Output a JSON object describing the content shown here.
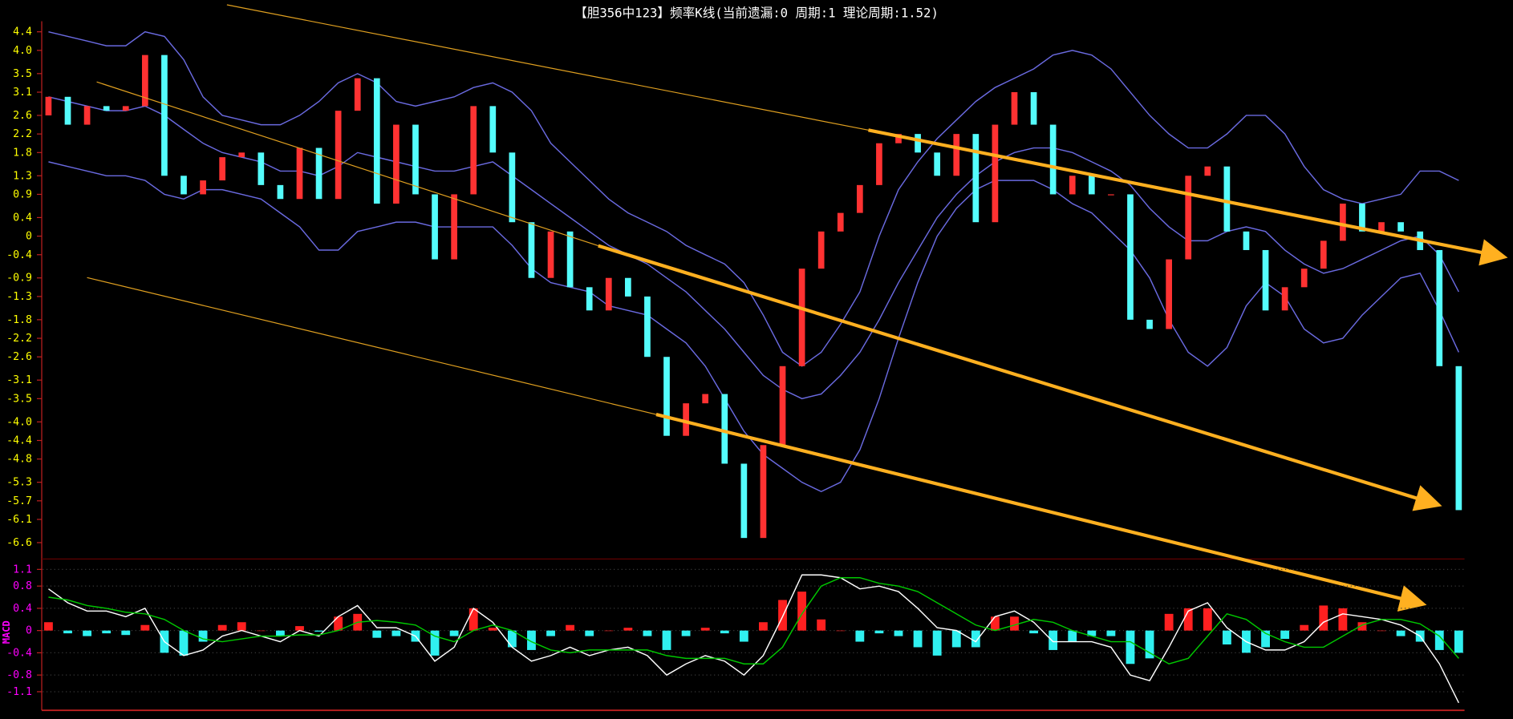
{
  "chart_data": [
    {
      "type": "candlestick",
      "title": "【胆356中123】频率K线(当前遗漏:0 周期:1 理论周期:1.52)",
      "up_color": "#ff3232",
      "down_color": "#54fcfc",
      "open": [
        2.6,
        3.0,
        2.4,
        2.8,
        2.7,
        2.8,
        3.9,
        1.3,
        0.9,
        1.2,
        1.7,
        1.8,
        1.1,
        0.8,
        1.9,
        0.8,
        2.7,
        3.4,
        0.7,
        2.4,
        0.9,
        -0.5,
        0.9,
        2.8,
        1.8,
        0.3,
        -0.9,
        0.1,
        -1.1,
        -1.6,
        -0.9,
        -1.3,
        -2.6,
        -4.3,
        -3.6,
        -3.4,
        -4.9,
        -6.5,
        -4.5,
        -2.8,
        -0.7,
        0.1,
        0.5,
        1.1,
        2.0,
        2.2,
        1.8,
        1.3,
        2.2,
        0.3,
        2.4,
        3.1,
        2.4,
        0.9,
        1.3,
        0.9,
        0.9,
        -1.8,
        -2.0,
        -0.5,
        1.3,
        1.5,
        0.1,
        -0.3,
        -1.6,
        -1.1,
        -0.7,
        -0.1,
        0.7,
        0.1,
        0.3,
        0.1,
        -0.3,
        -2.8
      ],
      "close": [
        3.0,
        2.4,
        2.8,
        2.7,
        2.8,
        3.9,
        1.3,
        0.9,
        1.2,
        1.7,
        1.8,
        1.1,
        0.8,
        1.9,
        0.8,
        2.7,
        3.4,
        0.7,
        2.4,
        0.9,
        -0.5,
        0.9,
        2.8,
        1.8,
        0.3,
        -0.9,
        0.1,
        -1.1,
        -1.6,
        -0.9,
        -1.3,
        -2.6,
        -4.3,
        -3.6,
        -3.4,
        -4.9,
        -6.5,
        -4.5,
        -2.8,
        -0.7,
        0.1,
        0.5,
        1.1,
        2.0,
        2.2,
        1.8,
        1.3,
        2.2,
        0.3,
        2.4,
        3.1,
        2.4,
        0.9,
        1.3,
        0.9,
        0.9,
        -1.8,
        -2.0,
        -0.5,
        1.3,
        1.5,
        0.1,
        -0.3,
        -1.6,
        -1.1,
        -0.7,
        -0.1,
        0.7,
        0.1,
        0.3,
        0.1,
        -0.3,
        -2.8,
        -5.9
      ],
      "bands": [
        {
          "color": "#6a6ae0",
          "values": [
            4.4,
            4.3,
            4.2,
            4.1,
            4.1,
            4.4,
            4.3,
            3.8,
            3.0,
            2.6,
            2.5,
            2.4,
            2.4,
            2.6,
            2.9,
            3.3,
            3.5,
            3.3,
            2.9,
            2.8,
            2.9,
            3.0,
            3.2,
            3.3,
            3.1,
            2.7,
            2.0,
            1.6,
            1.2,
            0.8,
            0.5,
            0.3,
            0.1,
            -0.2,
            -0.4,
            -0.6,
            -1.0,
            -1.7,
            -2.5,
            -2.8,
            -2.5,
            -1.9,
            -1.2,
            0.0,
            1.0,
            1.6,
            2.1,
            2.5,
            2.9,
            3.2,
            3.4,
            3.6,
            3.9,
            4.0,
            3.9,
            3.6,
            3.1,
            2.6,
            2.2,
            1.9,
            1.9,
            2.2,
            2.6,
            2.6,
            2.2,
            1.5,
            1.0,
            0.8,
            0.7,
            0.8,
            0.9,
            1.4,
            1.4,
            1.2
          ]
        },
        {
          "color": "#6a6ae0",
          "values": [
            3.0,
            2.9,
            2.8,
            2.7,
            2.7,
            2.8,
            2.6,
            2.3,
            2.0,
            1.8,
            1.7,
            1.6,
            1.4,
            1.4,
            1.3,
            1.5,
            1.8,
            1.7,
            1.6,
            1.5,
            1.4,
            1.4,
            1.5,
            1.6,
            1.3,
            1.0,
            0.7,
            0.4,
            0.1,
            -0.2,
            -0.4,
            -0.6,
            -0.9,
            -1.2,
            -1.6,
            -2.0,
            -2.5,
            -3.0,
            -3.3,
            -3.5,
            -3.4,
            -3.0,
            -2.5,
            -1.8,
            -1.0,
            -0.3,
            0.4,
            0.9,
            1.3,
            1.6,
            1.8,
            1.9,
            1.9,
            1.8,
            1.6,
            1.4,
            1.1,
            0.6,
            0.2,
            -0.1,
            -0.1,
            0.1,
            0.2,
            0.1,
            -0.3,
            -0.6,
            -0.8,
            -0.7,
            -0.5,
            -0.3,
            -0.1,
            0.0,
            -0.4,
            -1.2
          ]
        },
        {
          "color": "#6a6ae0",
          "values": [
            1.6,
            1.5,
            1.4,
            1.3,
            1.3,
            1.2,
            0.9,
            0.8,
            1.0,
            1.0,
            0.9,
            0.8,
            0.5,
            0.2,
            -0.3,
            -0.3,
            0.1,
            0.2,
            0.3,
            0.3,
            0.2,
            0.2,
            0.2,
            0.2,
            -0.2,
            -0.7,
            -1.0,
            -1.1,
            -1.2,
            -1.5,
            -1.6,
            -1.7,
            -2.0,
            -2.3,
            -2.8,
            -3.5,
            -4.2,
            -4.7,
            -5.0,
            -5.3,
            -5.5,
            -5.3,
            -4.6,
            -3.5,
            -2.2,
            -1.0,
            0.0,
            0.6,
            1.0,
            1.2,
            1.2,
            1.2,
            1.0,
            0.7,
            0.5,
            0.1,
            -0.3,
            -0.9,
            -1.8,
            -2.5,
            -2.8,
            -2.4,
            -1.5,
            -1.0,
            -1.3,
            -2.0,
            -2.3,
            -2.2,
            -1.7,
            -1.3,
            -0.9,
            -0.8,
            -1.6,
            -2.5
          ]
        }
      ],
      "ylim": [
        -6.6,
        4.4
      ],
      "yticks": [
        4.4,
        {
          "value": 4,
          "label": "4.0"
        },
        3.5,
        3.1,
        2.6,
        2.2,
        1.8,
        1.3,
        0.9,
        0.4,
        0,
        -0.4,
        -0.9,
        -1.3,
        -1.8,
        -2.2,
        -2.6,
        -3.1,
        -3.5,
        {
          "value": -4,
          "label": "-4.0"
        },
        -4.4,
        -4.8,
        -5.3,
        -5.7,
        -6.1,
        -6.6
      ],
      "tick_color": "#ffff00"
    },
    {
      "type": "macd",
      "ylabel": "MACD",
      "series": [
        {
          "color": "#ffffff",
          "values": [
            0.75,
            0.5,
            0.35,
            0.35,
            0.25,
            0.4,
            -0.2,
            -0.45,
            -0.35,
            -0.1,
            0,
            -0.1,
            -0.2,
            0,
            -0.1,
            0.25,
            0.45,
            0.05,
            0.05,
            -0.1,
            -0.55,
            -0.3,
            0.4,
            0.15,
            -0.3,
            -0.55,
            -0.45,
            -0.3,
            -0.45,
            -0.35,
            -0.3,
            -0.45,
            -0.8,
            -0.6,
            -0.45,
            -0.55,
            -0.8,
            -0.45,
            0.25,
            1.0,
            1.0,
            0.95,
            0.75,
            0.8,
            0.7,
            0.4,
            0.05,
            0,
            -0.2,
            0.25,
            0.35,
            0.15,
            -0.2,
            -0.2,
            -0.2,
            -0.3,
            -0.8,
            -0.9,
            -0.3,
            0.35,
            0.5,
            0.05,
            -0.2,
            -0.35,
            -0.35,
            -0.2,
            0.15,
            0.3,
            0.25,
            0.2,
            0.1,
            -0.1,
            -0.6,
            -1.3
          ]
        },
        {
          "color": "#00c800",
          "values": [
            0.6,
            0.55,
            0.45,
            0.4,
            0.33,
            0.3,
            0.2,
            0.0,
            -0.15,
            -0.2,
            -0.15,
            -0.1,
            -0.1,
            -0.08,
            -0.08,
            0.0,
            0.15,
            0.18,
            0.15,
            0.1,
            -0.1,
            -0.2,
            0.0,
            0.1,
            0.0,
            -0.2,
            -0.35,
            -0.4,
            -0.35,
            -0.35,
            -0.35,
            -0.35,
            -0.45,
            -0.5,
            -0.5,
            -0.5,
            -0.6,
            -0.6,
            -0.3,
            0.3,
            0.8,
            0.95,
            0.95,
            0.85,
            0.8,
            0.7,
            0.5,
            0.3,
            0.1,
            0.0,
            0.1,
            0.2,
            0.15,
            0.0,
            -0.1,
            -0.2,
            -0.2,
            -0.4,
            -0.6,
            -0.5,
            -0.1,
            0.3,
            0.2,
            -0.05,
            -0.2,
            -0.3,
            -0.3,
            -0.1,
            0.1,
            0.2,
            0.2,
            0.12,
            -0.1,
            -0.5
          ]
        }
      ],
      "histogram": {
        "up_color": "#ff2020",
        "down_color": "#30f0f0",
        "values": [
          0.15,
          -0.05,
          -0.1,
          -0.05,
          -0.08,
          0.1,
          -0.4,
          -0.45,
          -0.2,
          0.1,
          0.15,
          0,
          -0.1,
          0.08,
          -0.02,
          0.25,
          0.3,
          -0.13,
          -0.1,
          -0.2,
          -0.45,
          -0.1,
          0.4,
          0.05,
          -0.3,
          -0.35,
          -0.1,
          0.1,
          -0.1,
          0,
          0.05,
          -0.1,
          -0.35,
          -0.1,
          0.05,
          -0.05,
          -0.2,
          0.15,
          0.55,
          0.7,
          0.2,
          0,
          -0.2,
          -0.05,
          -0.1,
          -0.3,
          -0.45,
          -0.3,
          -0.3,
          0.25,
          0.25,
          -0.05,
          -0.35,
          -0.2,
          -0.1,
          -0.1,
          -0.6,
          -0.5,
          0.3,
          0.4,
          0.4,
          -0.25,
          -0.4,
          -0.3,
          -0.15,
          0.1,
          0.45,
          0.4,
          0.15,
          0,
          -0.1,
          -0.2,
          -0.35,
          -0.4
        ]
      },
      "ylim": [
        -1.4,
        1.2
      ],
      "yticks": [
        1.1,
        0.8,
        0.4,
        0,
        -0.4,
        -0.8,
        -1.1
      ],
      "tick_color": "#ff00ff",
      "grid": true
    }
  ]
}
